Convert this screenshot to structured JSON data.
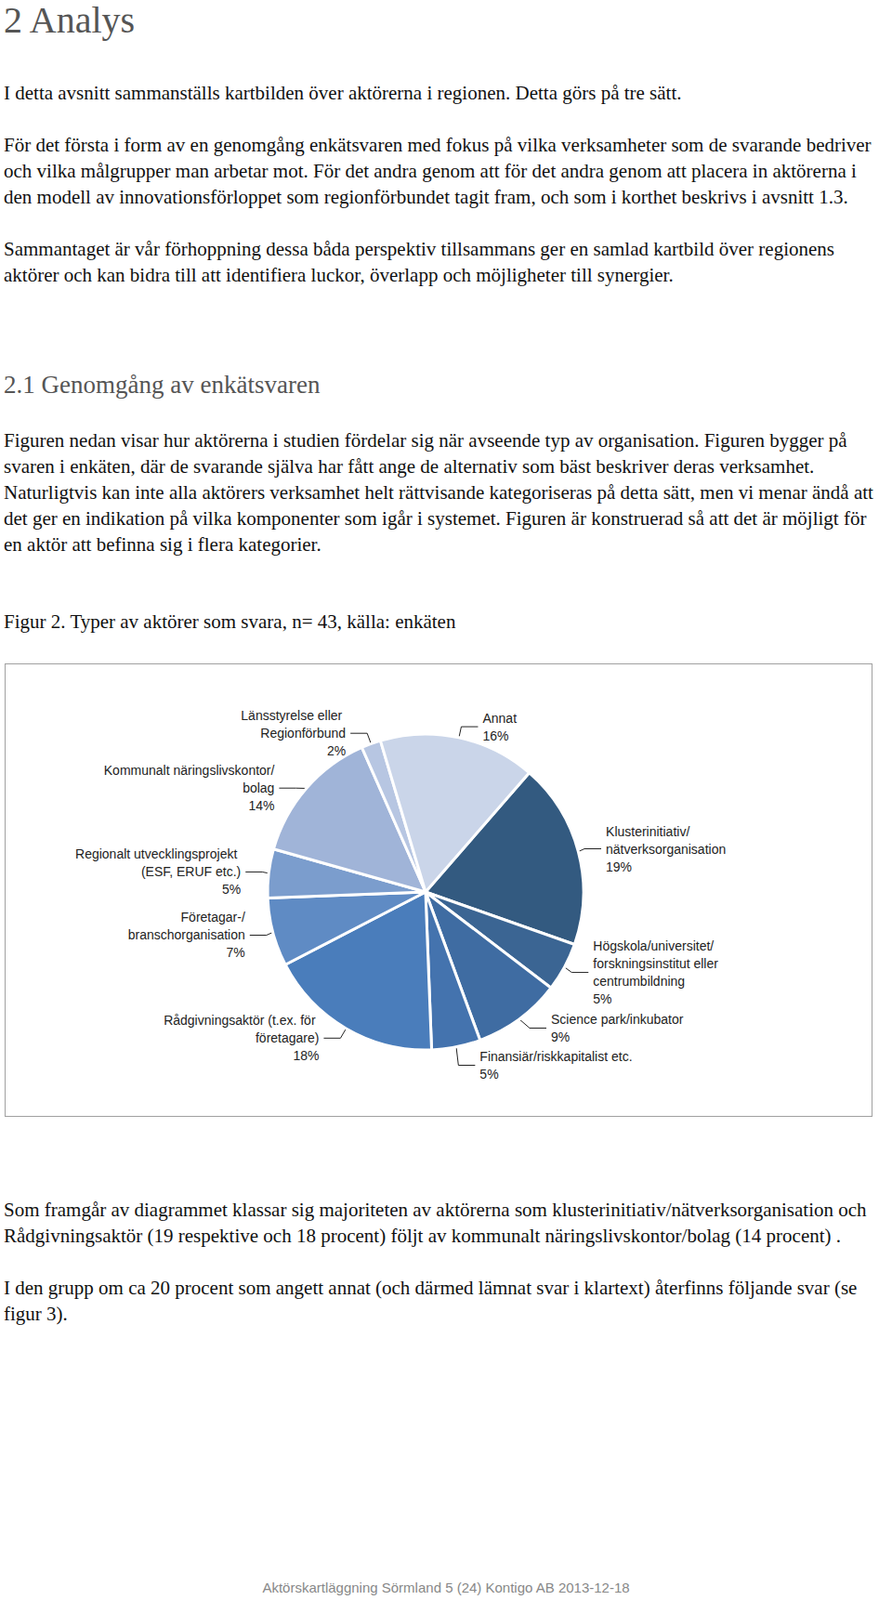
{
  "heading": "2 Analys",
  "intro": [
    "I detta avsnitt sammanställs kartbilden över aktörerna i regionen. Detta görs på tre sätt.",
    "För det första i form av en genomgång enkätsvaren med fokus på vilka verksamheter som de svarande bedriver och vilka målgrupper man arbetar mot. För det andra genom att för det andra genom att placera in aktörerna i den modell av innovationsförloppet som regionförbundet tagit fram, och som i korthet beskrivs i avsnitt 1.3.",
    "Sammantaget är vår förhoppning dessa båda perspektiv tillsammans ger en samlad kartbild över regionens aktörer och kan bidra till att identifiera luckor, överlapp och möjligheter till synergier."
  ],
  "section_heading": "2.1 Genomgång av enkätsvaren",
  "section_text": "Figuren nedan visar hur aktörerna i studien fördelar sig när avseende typ av organisation. Figuren bygger på svaren i enkäten, där de svarande själva har fått ange de alternativ som bäst beskriver deras verksamhet. Naturligtvis kan inte alla aktörers verksamhet helt rättvisande kategoriseras på detta sätt, men vi menar ändå att det ger en indikation på vilka komponenter som igår i systemet. Figuren är konstruerad så att det är möjligt för en aktör att befinna sig i flera kategorier.",
  "chart_data": {
    "type": "pie",
    "title": "Figur 2. Typer av aktörer som svara, n= 43, källa: enkäten",
    "categories": [
      "Klusterinitiativ/nätverksorganisation",
      "Högskola/universitet/forskningsinstitut eller centrumbildning",
      "Science park/inkubator",
      "Finansiär/riskkapitalist etc.",
      "Rådgivningsaktör (t.ex. för företagare)",
      "Företagar-/branschorganisation",
      "Regionalt utvecklingsprojekt (ESF, ERUF etc.)",
      "Kommunalt näringslivskontor/bolag",
      "Länsstyrelse eller Regionförbund",
      "Annat"
    ],
    "values": [
      19,
      5,
      9,
      5,
      18,
      7,
      5,
      14,
      2,
      16
    ],
    "value_labels": [
      "19%",
      "5%",
      "9%",
      "5%",
      "18%",
      "7%",
      "5%",
      "14%",
      "2%",
      "16%"
    ],
    "colors": [
      "#335a80",
      "#3b6593",
      "#3f6ca2",
      "#4473ae",
      "#4a7dbb",
      "#5f8bc4",
      "#7b9dcd",
      "#a0b4d8",
      "#b7c6e2",
      "#cad5e9"
    ],
    "data_labels": true
  },
  "after": [
    "Som framgår av diagrammet klassar sig majoriteten av aktörerna som klusterinitiativ/nätverksorganisation och Rådgivningsaktör (19 respektive och 18 procent) följt av kommunalt näringslivskontor/bolag (14 procent) .",
    "I den grupp om ca 20 procent som angett annat (och därmed lämnat svar i klartext) återfinns följande svar (se figur 3)."
  ],
  "footer": "Aktörskartläggning Sörmland 5 (24) Kontigo AB 2013-12-18"
}
